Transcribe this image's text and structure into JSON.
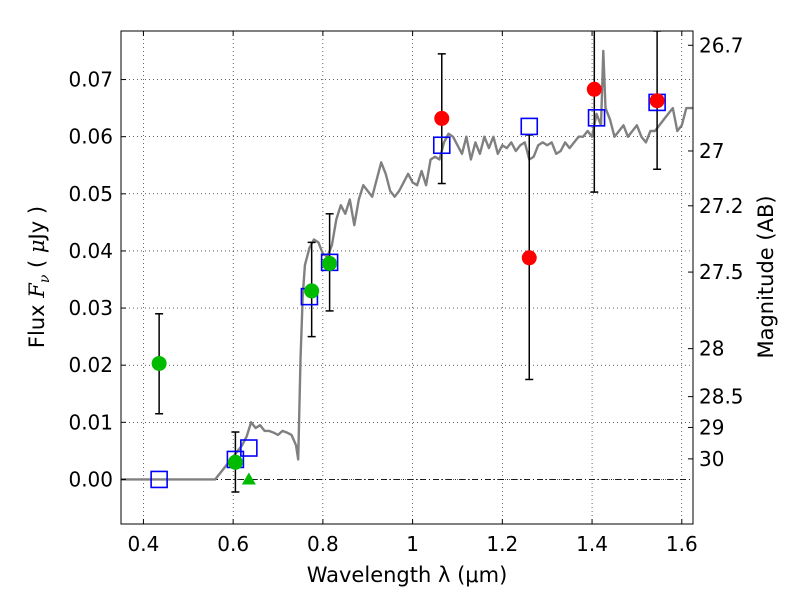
{
  "chart_data": {
    "type": "scatter",
    "xlabel": "Wavelength  λ (μm)",
    "ylabel": "Flux  F_ν  ( μJy )",
    "y2label": "Magnitude (AB)",
    "xlim": [
      0.35,
      1.625
    ],
    "ylim": [
      -0.0078,
      0.0785
    ],
    "x_ticks": [
      0.4,
      0.6,
      0.8,
      1.0,
      1.2,
      1.4,
      1.6
    ],
    "x_tick_labels": [
      "0.4",
      "0.6",
      "0.8",
      "1",
      "1.2",
      "1.4",
      "1.6"
    ],
    "y_ticks": [
      0.0,
      0.01,
      0.02,
      0.03,
      0.04,
      0.05,
      0.06,
      0.07
    ],
    "y_tick_labels": [
      "0.00",
      "0.01",
      "0.02",
      "0.03",
      "0.04",
      "0.05",
      "0.06",
      "0.07"
    ],
    "y2_ticks": [
      {
        "label": "26.7",
        "flux": 0.076
      },
      {
        "label": "27",
        "flux": 0.0575
      },
      {
        "label": "27.2",
        "flux": 0.0479
      },
      {
        "label": "27.5",
        "flux": 0.0363
      },
      {
        "label": "28",
        "flux": 0.0229
      },
      {
        "label": "28.5",
        "flux": 0.0145
      },
      {
        "label": "29",
        "flux": 0.0091
      },
      {
        "label": "30",
        "flux": 0.0036
      }
    ],
    "grid": true,
    "colors": {
      "template": "#808080",
      "model": "#0000ff",
      "optical": "#00bb00",
      "infrared": "#ff0000",
      "errorbar": "#000000"
    },
    "series": [
      {
        "kind": "line",
        "points": [
          [
            0.35,
            0
          ],
          [
            0.56,
            0
          ],
          [
            0.58,
            0.002
          ],
          [
            0.6,
            0.004
          ],
          [
            0.62,
            0.006
          ],
          [
            0.63,
            0.0075
          ],
          [
            0.64,
            0.01
          ],
          [
            0.65,
            0.009
          ],
          [
            0.66,
            0.0095
          ],
          [
            0.67,
            0.0085
          ],
          [
            0.68,
            0.0085
          ],
          [
            0.69,
            0.0082
          ],
          [
            0.7,
            0.0078
          ],
          [
            0.71,
            0.0085
          ],
          [
            0.72,
            0.0082
          ],
          [
            0.73,
            0.0078
          ],
          [
            0.74,
            0.006
          ],
          [
            0.745,
            0.0035
          ],
          [
            0.75,
            0.021
          ],
          [
            0.755,
            0.032
          ],
          [
            0.76,
            0.0375
          ],
          [
            0.77,
            0.0405
          ],
          [
            0.78,
            0.042
          ],
          [
            0.79,
            0.0415
          ],
          [
            0.8,
            0.0395
          ],
          [
            0.81,
            0.039
          ],
          [
            0.82,
            0.041
          ],
          [
            0.83,
            0.0455
          ],
          [
            0.84,
            0.048
          ],
          [
            0.85,
            0.0465
          ],
          [
            0.86,
            0.049
          ],
          [
            0.87,
            0.0445
          ],
          [
            0.88,
            0.049
          ],
          [
            0.89,
            0.0515
          ],
          [
            0.9,
            0.0505
          ],
          [
            0.91,
            0.0495
          ],
          [
            0.92,
            0.0525
          ],
          [
            0.93,
            0.0555
          ],
          [
            0.94,
            0.0535
          ],
          [
            0.95,
            0.0505
          ],
          [
            0.96,
            0.0495
          ],
          [
            0.97,
            0.0505
          ],
          [
            0.98,
            0.052
          ],
          [
            0.99,
            0.0535
          ],
          [
            1.0,
            0.052
          ],
          [
            1.01,
            0.0515
          ],
          [
            1.02,
            0.054
          ],
          [
            1.03,
            0.0515
          ],
          [
            1.04,
            0.056
          ],
          [
            1.05,
            0.0565
          ],
          [
            1.06,
            0.056
          ],
          [
            1.07,
            0.059
          ],
          [
            1.08,
            0.0605
          ],
          [
            1.09,
            0.06
          ],
          [
            1.1,
            0.0585
          ],
          [
            1.11,
            0.057
          ],
          [
            1.12,
            0.06
          ],
          [
            1.13,
            0.056
          ],
          [
            1.14,
            0.059
          ],
          [
            1.15,
            0.057
          ],
          [
            1.16,
            0.06
          ],
          [
            1.17,
            0.058
          ],
          [
            1.18,
            0.06
          ],
          [
            1.19,
            0.057
          ],
          [
            1.2,
            0.0585
          ],
          [
            1.21,
            0.058
          ],
          [
            1.22,
            0.059
          ],
          [
            1.23,
            0.0575
          ],
          [
            1.24,
            0.0585
          ],
          [
            1.25,
            0.059
          ],
          [
            1.26,
            0.056
          ],
          [
            1.27,
            0.0565
          ],
          [
            1.28,
            0.0585
          ],
          [
            1.29,
            0.059
          ],
          [
            1.3,
            0.0585
          ],
          [
            1.31,
            0.059
          ],
          [
            1.32,
            0.057
          ],
          [
            1.33,
            0.0575
          ],
          [
            1.34,
            0.059
          ],
          [
            1.35,
            0.058
          ],
          [
            1.36,
            0.059
          ],
          [
            1.37,
            0.06
          ],
          [
            1.38,
            0.06
          ],
          [
            1.39,
            0.061
          ],
          [
            1.4,
            0.06
          ],
          [
            1.41,
            0.064
          ],
          [
            1.42,
            0.062
          ],
          [
            1.425,
            0.075
          ],
          [
            1.43,
            0.065
          ],
          [
            1.44,
            0.063
          ],
          [
            1.45,
            0.06
          ],
          [
            1.46,
            0.061
          ],
          [
            1.47,
            0.062
          ],
          [
            1.48,
            0.06
          ],
          [
            1.49,
            0.061
          ],
          [
            1.5,
            0.062
          ],
          [
            1.51,
            0.06
          ],
          [
            1.52,
            0.059
          ],
          [
            1.53,
            0.061
          ],
          [
            1.54,
            0.061
          ],
          [
            1.55,
            0.062
          ],
          [
            1.56,
            0.063
          ],
          [
            1.57,
            0.064
          ],
          [
            1.58,
            0.065
          ],
          [
            1.59,
            0.061
          ],
          [
            1.6,
            0.062
          ],
          [
            1.61,
            0.065
          ],
          [
            1.625,
            0.065
          ]
        ]
      },
      {
        "kind": "squares",
        "points": [
          [
            0.435,
            0.0
          ],
          [
            0.605,
            0.0035
          ],
          [
            0.635,
            0.0055
          ],
          [
            0.77,
            0.032
          ],
          [
            0.815,
            0.038
          ],
          [
            1.065,
            0.0585
          ],
          [
            1.26,
            0.0618
          ],
          [
            1.41,
            0.0633
          ],
          [
            1.545,
            0.066
          ]
        ]
      },
      {
        "kind": "green-circles",
        "points": [
          {
            "x": 0.435,
            "y": 0.0203,
            "lo": 0.0115,
            "hi": 0.029
          },
          {
            "x": 0.605,
            "y": 0.003,
            "lo": -0.0022,
            "hi": 0.0083
          },
          {
            "x": 0.775,
            "y": 0.033,
            "lo": 0.025,
            "hi": 0.0415
          },
          {
            "x": 0.815,
            "y": 0.0378,
            "lo": 0.0295,
            "hi": 0.0465
          }
        ]
      },
      {
        "kind": "green-triangles",
        "points": [
          [
            0.635,
            0.0
          ]
        ]
      },
      {
        "kind": "red-circles",
        "points": [
          {
            "x": 1.065,
            "y": 0.0632,
            "lo": 0.0518,
            "hi": 0.0745
          },
          {
            "x": 1.26,
            "y": 0.0388,
            "lo": 0.0175,
            "hi": 0.0603
          },
          {
            "x": 1.405,
            "y": 0.0683,
            "lo": 0.0503,
            "hi": 0.079
          },
          {
            "x": 1.545,
            "y": 0.0663,
            "lo": 0.0543,
            "hi": 0.0785
          }
        ]
      }
    ]
  }
}
